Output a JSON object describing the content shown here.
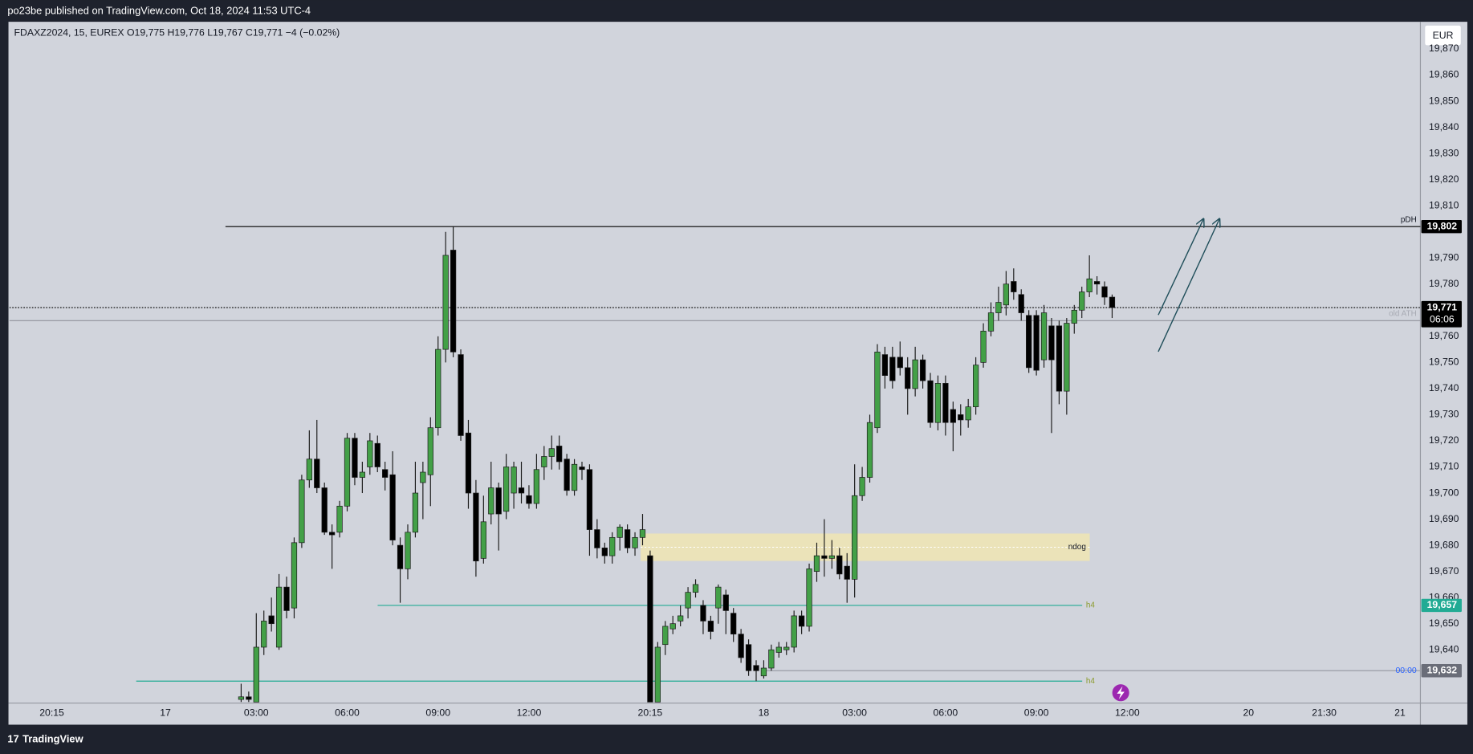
{
  "header": {
    "text": "po23be published on TradingView.com, Oct 18, 2024 11:53 UTC-4"
  },
  "legend": "FDAXZ2024, 15, EUREX  O19,775  H19,776  L19,767  C19,771  −4 (−0.02%)",
  "currency": "EUR",
  "footer": "TradingView",
  "chart_data": {
    "type": "candlestick",
    "up_color": "#43a047",
    "down_color": "#000000",
    "x": [
      -2,
      -1,
      0,
      1,
      2,
      3,
      4,
      5,
      6,
      7,
      8,
      9,
      10,
      11,
      12,
      13,
      14,
      15,
      16,
      17,
      18,
      19,
      20,
      21,
      22,
      23,
      24,
      25,
      26,
      27,
      28,
      29,
      30,
      31,
      32,
      33,
      34,
      35,
      36,
      37,
      38,
      39,
      40,
      41,
      42,
      43,
      44,
      45,
      46,
      47,
      48,
      49,
      50,
      51,
      52,
      53,
      54,
      55,
      56,
      57,
      58,
      59,
      60,
      61,
      62,
      63,
      64,
      65,
      66,
      67,
      68,
      69,
      70,
      71,
      72,
      73,
      74,
      75,
      76,
      77,
      78,
      79,
      80,
      81,
      82,
      83,
      84,
      85,
      86,
      87,
      88,
      89,
      90,
      91,
      92,
      93,
      94,
      95,
      96,
      97,
      98,
      99,
      100,
      101,
      102,
      103,
      104,
      105,
      106,
      107,
      108,
      109,
      110,
      111,
      112,
      113
    ],
    "open": [
      19621,
      19622,
      19620,
      19641,
      19653,
      19641,
      19664,
      19656,
      19681,
      19705,
      19713,
      19702,
      19685,
      19685,
      19695,
      19721,
      19706,
      19710,
      19719,
      19709,
      19707,
      19680,
      19671,
      19685,
      19704,
      19707,
      19725,
      19755,
      19793,
      19753,
      19723,
      19700,
      19675,
      19692,
      19702,
      19693,
      19700,
      19702,
      19699,
      19696,
      19710,
      19714,
      19718,
      19713,
      19701,
      19710,
      19709,
      19686,
      19679,
      19676,
      19683,
      19686,
      19679,
      19683,
      19676,
      19620,
      19642,
      19648,
      19651,
      19656,
      19662,
      19657,
      19651,
      19656,
      19661,
      19654,
      19646,
      19642,
      19634,
      19630,
      19633,
      19639,
      19640,
      19641,
      19653,
      19649,
      19670,
      19676,
      19675,
      19676,
      19672,
      19667,
      19699,
      19706,
      19725,
      19753,
      19752,
      19752,
      19748,
      19740,
      19751,
      19743,
      19727,
      19742,
      19732,
      19730,
      19728,
      19733,
      19750,
      19762,
      19769,
      19772,
      19781,
      19776,
      19768,
      19768,
      19751,
      19764,
      19764,
      19739,
      19765,
      19770,
      19777,
      19781,
      19779,
      19775
    ],
    "high": [
      19627,
      19624,
      19654,
      19655,
      19660,
      19669,
      19668,
      19683,
      19707,
      19724,
      19728,
      19704,
      19688,
      19697,
      19723,
      19723,
      19712,
      19723,
      19722,
      19712,
      19716,
      19683,
      19688,
      19712,
      19712,
      19729,
      19760,
      19800,
      19802,
      19755,
      19728,
      19705,
      19699,
      19712,
      19704,
      19715,
      19712,
      19712,
      19703,
      19715,
      19718,
      19722,
      19722,
      19715,
      19713,
      19712,
      19711,
      19690,
      19681,
      19685,
      19688,
      19688,
      19685,
      19692,
      19678,
      19643,
      19651,
      19653,
      19657,
      19664,
      19667,
      19659,
      19653,
      19665,
      19663,
      19656,
      19648,
      19644,
      19636,
      19636,
      19642,
      19643,
      19643,
      19655,
      19655,
      19673,
      19681,
      19690,
      19682,
      19679,
      19677,
      19711,
      19710,
      19730,
      19757,
      19756,
      19756,
      19758,
      19752,
      19756,
      19753,
      19746,
      19745,
      19745,
      19735,
      19734,
      19736,
      19752,
      19765,
      19773,
      19779,
      19785,
      19786,
      19778,
      19770,
      19770,
      19772,
      19767,
      19766,
      19767,
      19772,
      19779,
      19791,
      19783,
      19781,
      19776
    ],
    "low": [
      19620,
      19620,
      19620,
      19638,
      19647,
      19640,
      19652,
      19652,
      19679,
      19702,
      19700,
      19684,
      19671,
      19683,
      19693,
      19703,
      19700,
      19707,
      19708,
      19701,
      19680,
      19658,
      19667,
      19683,
      19690,
      19695,
      19722,
      19750,
      19752,
      19720,
      19694,
      19668,
      19673,
      19688,
      19678,
      19690,
      19694,
      19696,
      19694,
      19694,
      19705,
      19709,
      19709,
      19699,
      19699,
      19705,
      19676,
      19675,
      19673,
      19673,
      19678,
      19677,
      19676,
      19680,
      19620,
      19620,
      19638,
      19646,
      19649,
      19652,
      19660,
      19646,
      19644,
      19650,
      19646,
      19643,
      19635,
      19630,
      19628,
      19629,
      19632,
      19637,
      19638,
      19639,
      19646,
      19647,
      19666,
      19668,
      19671,
      19667,
      19658,
      19660,
      19697,
      19704,
      19723,
      19740,
      19740,
      19745,
      19730,
      19737,
      19740,
      19725,
      19724,
      19722,
      19716,
      19722,
      19725,
      19730,
      19748,
      19760,
      19766,
      19768,
      19774,
      19766,
      19746,
      19745,
      19748,
      19723,
      19734,
      19730,
      19761,
      19767,
      19775,
      19776,
      19772,
      19767
    ],
    "close": [
      19622,
      19621,
      19641,
      19651,
      19650,
      19664,
      19655,
      19681,
      19705,
      19713,
      19702,
      19685,
      19684,
      19695,
      19721,
      19706,
      19708,
      19720,
      19710,
      19706,
      19682,
      19671,
      19685,
      19700,
      19708,
      19725,
      19755,
      19791,
      19754,
      19722,
      19700,
      19674,
      19689,
      19702,
      19692,
      19710,
      19710,
      19700,
      19696,
      19709,
      19714,
      19717,
      19712,
      19701,
      19711,
      19709,
      19686,
      19679,
      19676,
      19683,
      19687,
      19679,
      19683,
      19686,
      19620,
      19641,
      19649,
      19650,
      19653,
      19662,
      19665,
      19651,
      19647,
      19664,
      19655,
      19646,
      19637,
      19632,
      19632,
      19633,
      19640,
      19641,
      19641,
      19653,
      19649,
      19671,
      19676,
      19675,
      19676,
      19669,
      19667,
      19699,
      19706,
      19727,
      19754,
      19745,
      19743,
      19748,
      19740,
      19751,
      19743,
      19727,
      19742,
      19727,
      19727,
      19728,
      19733,
      19749,
      19762,
      19769,
      19773,
      19780,
      19777,
      19769,
      19748,
      19747,
      19769,
      19751,
      19739,
      19765,
      19770,
      19777,
      19782,
      19780,
      19775,
      19771
    ],
    "xlim": [
      -32.6,
      153.7
    ],
    "xticks": [
      {
        "value": -27,
        "label": "20:15"
      },
      {
        "value": -12,
        "label": "17"
      },
      {
        "value": 0,
        "label": "03:00"
      },
      {
        "value": 12,
        "label": "06:00"
      },
      {
        "value": 24,
        "label": "09:00"
      },
      {
        "value": 36,
        "label": "12:00"
      },
      {
        "value": 52,
        "label": "20:15"
      },
      {
        "value": 67,
        "label": "18"
      },
      {
        "value": 79,
        "label": "03:00"
      },
      {
        "value": 91,
        "label": "06:00"
      },
      {
        "value": 103,
        "label": "09:00"
      },
      {
        "value": 115,
        "label": "12:00"
      },
      {
        "value": 131,
        "label": "20"
      },
      {
        "value": 141,
        "label": "21:30"
      },
      {
        "value": 151,
        "label": "21"
      }
    ],
    "ylim": [
      19619.6,
      19880.4
    ],
    "yticks": [
      {
        "value": 19640,
        "label": "19,640"
      },
      {
        "value": 19650,
        "label": "19,650"
      },
      {
        "value": 19660,
        "label": "19,660"
      },
      {
        "value": 19670,
        "label": "19,670"
      },
      {
        "value": 19680,
        "label": "19,680"
      },
      {
        "value": 19690,
        "label": "19,690"
      },
      {
        "value": 19700,
        "label": "19,700"
      },
      {
        "value": 19710,
        "label": "19,710"
      },
      {
        "value": 19720,
        "label": "19,720"
      },
      {
        "value": 19730,
        "label": "19,730"
      },
      {
        "value": 19740,
        "label": "19,740"
      },
      {
        "value": 19750,
        "label": "19,750"
      },
      {
        "value": 19760,
        "label": "19,760"
      },
      {
        "value": 19780,
        "label": "19,780"
      },
      {
        "value": 19790,
        "label": "19,790"
      },
      {
        "value": 19810,
        "label": "19,810"
      },
      {
        "value": 19820,
        "label": "19,820"
      },
      {
        "value": 19830,
        "label": "19,830"
      },
      {
        "value": 19840,
        "label": "19,840"
      },
      {
        "value": 19850,
        "label": "19,850"
      },
      {
        "value": 19860,
        "label": "19,860"
      },
      {
        "value": 19870,
        "label": "19,870"
      }
    ],
    "levels": [
      {
        "name": "pDH",
        "value": 19802,
        "tag": "19,802",
        "color": "#000000"
      },
      {
        "value": 19771,
        "tag": "19,771",
        "sub": "06:06",
        "color": "#000000",
        "style": "dotted"
      },
      {
        "name": "old ATH",
        "value": 19766,
        "color": "#8f929b"
      },
      {
        "name": "h4",
        "value": 19657,
        "tag": "19,657",
        "color": "#22ab94"
      },
      {
        "name": "h4",
        "value": 19628,
        "color": "#22ab94"
      },
      {
        "value": 19632,
        "tag": "19,632",
        "sub": "00:00",
        "color": "#9a9da6"
      }
    ],
    "zones": [
      {
        "name": "ndog",
        "low": 19674,
        "high": 19684.5,
        "color": "#ede4b5"
      }
    ]
  }
}
